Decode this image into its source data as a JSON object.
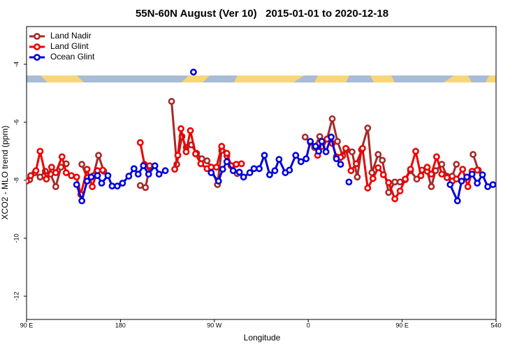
{
  "chart_data": {
    "type": "line",
    "title": "55N-60N August (Ver 10)   2015-01-01 to 2020-12-18",
    "x_label": "Longitude",
    "y_label": "XCO2 - MLO trend (ppm)",
    "xlim": [
      90,
      540
    ],
    "xticks": [
      {
        "value": 90,
        "label": "90 E"
      },
      180,
      {
        "value": 270,
        "label": "90 W"
      },
      {
        "value": 360,
        "label": "0"
      },
      {
        "value": 450,
        "label": "90 E"
      },
      540
    ],
    "ylim": [
      -12.8,
      -2.7
    ],
    "yticks": [
      -4,
      -6,
      -8,
      -10,
      -12
    ],
    "legend": "top-left",
    "series": [
      {
        "name": "Land Nadir",
        "color": "#a52a2a",
        "x": [
          93,
          98,
          103,
          108,
          113,
          118,
          123,
          128,
          null,
          143,
          148,
          154,
          159,
          164,
          null,
          199,
          204,
          208,
          null,
          229,
          234,
          239,
          243,
          248,
          253,
          258,
          263,
          267,
          273,
          277,
          282,
          287,
          292,
          null,
          357,
          362,
          366,
          371,
          374,
          378,
          383,
          388,
          393,
          397,
          402,
          407,
          411,
          417,
          421,
          427,
          431,
          437,
          443,
          448,
          453,
          458,
          464,
          469,
          474,
          478,
          482,
          488,
          493,
          498,
          502,
          null,
          518,
          523
        ],
        "values": [
          -7.98,
          -7.74,
          -7.89,
          -7.69,
          -7.79,
          -8.22,
          -7.55,
          -7.43,
          null,
          -7.45,
          -7.91,
          -7.84,
          -7.14,
          -7.69,
          null,
          -8.18,
          -8.25,
          -7.55,
          null,
          -5.28,
          -7.45,
          -6.49,
          -6.87,
          -6.78,
          -7.07,
          -7.26,
          -7.33,
          -7.55,
          -8.15,
          -6.97,
          -7.16,
          -7.5,
          -7.77,
          null,
          -6.51,
          -6.7,
          -6.87,
          -6.49,
          -6.7,
          -6.58,
          -5.88,
          -6.66,
          -7.16,
          -6.95,
          -7.02,
          -7.89,
          -6.95,
          -6.2,
          -7.74,
          -7.11,
          -7.31,
          -8.42,
          -8.06,
          -8.06,
          -7.98,
          -7.67,
          -7.96,
          -7.65,
          -7.69,
          -8.22,
          -7.67,
          -7.45,
          -7.86,
          -7.86,
          -7.45,
          null,
          -7.11,
          -7.65
        ]
      },
      {
        "name": "Land Glint",
        "color": "#ee0000",
        "x": [
          90,
          94,
          99,
          103,
          109,
          114,
          118,
          124,
          128,
          133,
          138,
          142,
          148,
          153,
          158,
          163,
          null,
          199,
          203,
          208,
          null,
          232,
          235,
          238,
          243,
          247,
          252,
          257,
          263,
          267,
          272,
          277,
          282,
          286,
          291,
          296,
          null,
          369,
          373,
          378,
          383,
          387,
          391,
          396,
          401,
          406,
          412,
          417,
          422,
          427,
          432,
          437,
          443,
          448,
          453,
          458,
          463,
          468,
          474,
          478,
          483,
          488,
          493,
          498,
          502,
          508,
          513,
          517,
          522
        ],
        "values": [
          -8.03,
          -7.84,
          -7.67,
          -7.0,
          -7.96,
          -7.55,
          -7.74,
          -7.19,
          -7.74,
          -7.84,
          -7.89,
          -8.49,
          -7.62,
          -8.22,
          -7.67,
          -7.65,
          null,
          -6.7,
          -7.45,
          -7.5,
          null,
          -7.62,
          -7.14,
          -6.22,
          -7.02,
          -6.29,
          -7.09,
          -7.43,
          -7.6,
          -7.55,
          -7.55,
          -6.83,
          -7.07,
          -7.5,
          -7.45,
          -7.43,
          null,
          -7.14,
          -6.83,
          -6.58,
          -6.73,
          -7.19,
          -7.21,
          -6.9,
          -7.67,
          -7.43,
          -6.9,
          -8.27,
          -7.94,
          -7.57,
          -7.81,
          -8.08,
          -8.64,
          -8.37,
          -7.96,
          -7.62,
          -7.0,
          -7.84,
          -7.55,
          -7.79,
          -7.19,
          -7.79,
          -7.91,
          -8.03,
          -7.96,
          -7.62,
          -8.22,
          -7.69,
          -7.65
        ]
      },
      {
        "name": "Ocean Glint",
        "color": "#0000dd",
        "x": [
          138,
          143,
          148,
          152,
          158,
          162,
          168,
          172,
          177,
          182,
          188,
          193,
          197,
          202,
          207,
          213,
          217,
          223,
          null,
          250,
          null,
          267,
          274,
          278,
          282,
          288,
          294,
          298,
          304,
          308,
          313,
          318,
          323,
          328,
          332,
          338,
          342,
          348,
          353,
          358,
          362,
          367,
          370,
          373,
          377,
          382,
          387,
          391,
          null,
          399,
          null,
          496,
          503,
          507,
          512,
          517,
          522,
          527,
          532,
          537
        ],
        "values": [
          -8.15,
          -8.71,
          -8.03,
          -7.89,
          -7.84,
          -8.1,
          -7.84,
          -8.2,
          -8.2,
          -8.1,
          -7.86,
          -7.6,
          -7.79,
          -7.5,
          -7.79,
          -7.5,
          -7.79,
          -7.67,
          null,
          -4.27,
          null,
          -7.74,
          -8.03,
          -7.62,
          -7.36,
          -7.67,
          -7.72,
          -7.89,
          -7.74,
          -7.6,
          -7.6,
          -7.14,
          -7.81,
          -7.67,
          -7.28,
          -7.74,
          -7.65,
          -7.14,
          -7.36,
          -7.26,
          -6.66,
          -6.83,
          -7.0,
          -6.66,
          -7.02,
          -6.51,
          -7.26,
          -7.45,
          null,
          -8.06,
          null,
          -8.15,
          -8.71,
          -8.03,
          -7.89,
          -7.79,
          -8.1,
          -7.81,
          -8.22,
          -8.15
        ]
      }
    ]
  }
}
